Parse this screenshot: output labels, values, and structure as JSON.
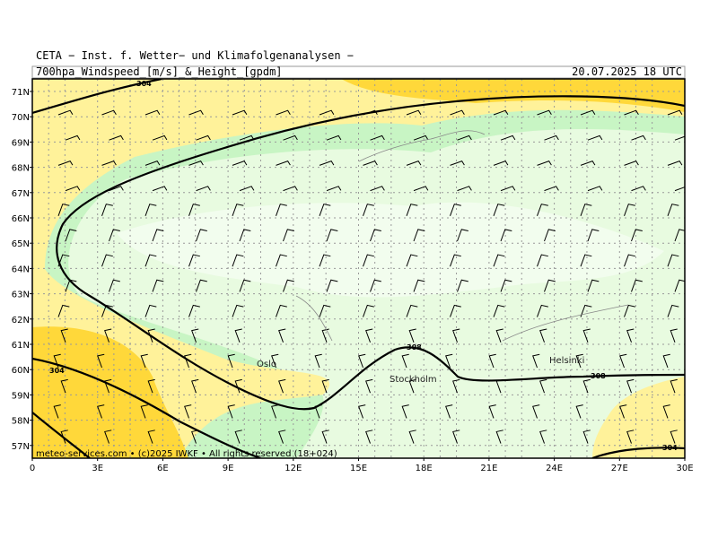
{
  "header": {
    "institute": "CETA − Inst. f. Wetter− und Klimafolgenanalysen −",
    "title": "700hpa_Windspeed_[m/s]_&_Height_[gpdm]",
    "datetime": "20.07.2025 18 UTC"
  },
  "map": {
    "lat_labels": [
      "71N",
      "70N",
      "69N",
      "68N",
      "67N",
      "66N",
      "65N",
      "64N",
      "63N",
      "62N",
      "61N",
      "60N",
      "59N",
      "58N",
      "57N"
    ],
    "lon_labels": [
      "0",
      "3E",
      "6E",
      "9E",
      "12E",
      "15E",
      "18E",
      "21E",
      "24E",
      "27E",
      "30E"
    ],
    "cities": [
      "Oslo",
      "Stockholm",
      "Helsinki"
    ],
    "contour_labels": [
      "304",
      "304",
      "308",
      "308",
      "304"
    ]
  },
  "footer": "meteo-services.com • (c)2025 IWKF • All rights reserved (18+024)"
}
